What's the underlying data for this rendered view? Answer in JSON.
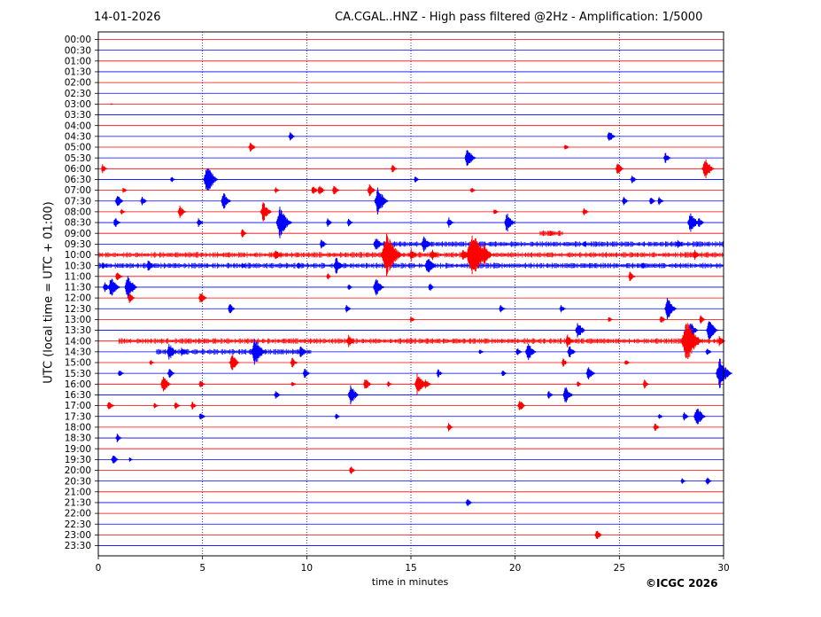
{
  "header": {
    "date": "14-01-2026",
    "title": "CA.CGAL..HNZ - High pass filtered @2Hz - Amplification: 1/5000"
  },
  "footer": {
    "copyright": "©ICGC 2026"
  },
  "chart_data": {
    "type": "line",
    "title": "CA.CGAL..HNZ - High pass filtered @2Hz - Amplification: 1/5000",
    "xlabel": "time in minutes",
    "ylabel": "UTC (local time = UTC + 01:00)",
    "xlim": [
      0,
      30
    ],
    "xticks": [
      0,
      5,
      10,
      15,
      20,
      25,
      30
    ],
    "grid": "vertical dotted lines at x ticks",
    "colors": {
      "even_rows": "#ff0000",
      "odd_rows": "#0000ff",
      "grid": "#00008b",
      "axes": "#000000"
    },
    "rows": [
      "00:00",
      "00:30",
      "01:00",
      "01:30",
      "02:00",
      "02:30",
      "03:00",
      "03:30",
      "04:00",
      "04:30",
      "05:00",
      "05:30",
      "06:00",
      "06:30",
      "07:00",
      "07:30",
      "08:00",
      "08:30",
      "09:00",
      "09:30",
      "10:00",
      "10:30",
      "11:00",
      "11:30",
      "12:00",
      "12:30",
      "13:00",
      "13:30",
      "14:00",
      "14:30",
      "15:00",
      "15:30",
      "16:00",
      "16:30",
      "17:00",
      "17:30",
      "18:00",
      "18:30",
      "19:00",
      "19:30",
      "20:00",
      "20:30",
      "21:00",
      "21:30",
      "22:00",
      "22:30",
      "23:00",
      "23:30"
    ],
    "events": [
      {
        "row": "03:00",
        "x": 0.6,
        "amp": 0.1
      },
      {
        "row": "04:30",
        "x": 9.2,
        "amp": 0.4
      },
      {
        "row": "04:30",
        "x": 24.5,
        "amp": 0.6
      },
      {
        "row": "05:00",
        "x": 7.3,
        "amp": 0.5
      },
      {
        "row": "05:00",
        "x": 22.4,
        "amp": 0.3
      },
      {
        "row": "05:30",
        "x": 17.7,
        "amp": 0.9
      },
      {
        "row": "05:30",
        "x": 27.2,
        "amp": 0.5
      },
      {
        "row": "06:00",
        "x": 0.2,
        "amp": 0.4
      },
      {
        "row": "06:00",
        "x": 14.1,
        "amp": 0.4
      },
      {
        "row": "06:00",
        "x": 24.9,
        "amp": 0.6
      },
      {
        "row": "06:00",
        "x": 29.1,
        "amp": 1.0
      },
      {
        "row": "06:30",
        "x": 3.5,
        "amp": 0.3
      },
      {
        "row": "06:30",
        "x": 5.2,
        "amp": 1.3
      },
      {
        "row": "06:30",
        "x": 15.2,
        "amp": 0.3
      },
      {
        "row": "06:30",
        "x": 25.6,
        "amp": 0.4
      },
      {
        "row": "07:00",
        "x": 1.2,
        "amp": 0.3
      },
      {
        "row": "07:00",
        "x": 8.5,
        "amp": 0.3
      },
      {
        "row": "07:00",
        "x": 10.3,
        "amp": 0.5
      },
      {
        "row": "07:00",
        "x": 10.6,
        "amp": 0.5
      },
      {
        "row": "07:00",
        "x": 11.3,
        "amp": 0.5
      },
      {
        "row": "07:00",
        "x": 13.0,
        "amp": 0.6
      },
      {
        "row": "07:00",
        "x": 17.9,
        "amp": 0.3
      },
      {
        "row": "07:30",
        "x": 0.9,
        "amp": 0.6
      },
      {
        "row": "07:30",
        "x": 2.1,
        "amp": 0.4
      },
      {
        "row": "07:30",
        "x": 6.0,
        "amp": 0.8
      },
      {
        "row": "07:30",
        "x": 13.4,
        "amp": 1.2
      },
      {
        "row": "07:30",
        "x": 25.2,
        "amp": 0.4
      },
      {
        "row": "07:30",
        "x": 26.5,
        "amp": 0.4
      },
      {
        "row": "07:30",
        "x": 26.9,
        "amp": 0.4
      },
      {
        "row": "08:00",
        "x": 1.1,
        "amp": 0.3
      },
      {
        "row": "08:00",
        "x": 3.9,
        "amp": 0.6
      },
      {
        "row": "08:00",
        "x": 7.9,
        "amp": 0.9
      },
      {
        "row": "08:00",
        "x": 19.0,
        "amp": 0.3
      },
      {
        "row": "08:00",
        "x": 23.3,
        "amp": 0.4
      },
      {
        "row": "08:30",
        "x": 0.8,
        "amp": 0.5
      },
      {
        "row": "08:30",
        "x": 4.8,
        "amp": 0.4
      },
      {
        "row": "08:30",
        "x": 8.7,
        "amp": 1.4
      },
      {
        "row": "08:30",
        "x": 11.0,
        "amp": 0.4
      },
      {
        "row": "08:30",
        "x": 12.0,
        "amp": 0.4
      },
      {
        "row": "08:30",
        "x": 16.8,
        "amp": 0.5
      },
      {
        "row": "08:30",
        "x": 19.6,
        "amp": 0.9
      },
      {
        "row": "08:30",
        "x": 28.4,
        "amp": 1.0
      },
      {
        "row": "08:30",
        "x": 28.8,
        "amp": 0.5
      },
      {
        "row": "09:00",
        "x": 6.9,
        "amp": 0.4
      },
      {
        "row": "09:00",
        "x": 21.7,
        "amp": 0.3
      },
      {
        "row": "09:30",
        "x": 10.7,
        "amp": 0.5
      },
      {
        "row": "09:30",
        "x": 13.3,
        "amp": 0.7
      },
      {
        "row": "09:30",
        "x": 15.6,
        "amp": 0.8
      },
      {
        "row": "09:30",
        "x": 23.3,
        "amp": 0.3
      },
      {
        "row": "09:30",
        "x": 27.8,
        "amp": 0.4
      },
      {
        "row": "10:00",
        "x": 8.5,
        "amp": 0.6
      },
      {
        "row": "10:00",
        "x": 13.8,
        "amp": 2.0
      },
      {
        "row": "10:00",
        "x": 15.0,
        "amp": 0.6
      },
      {
        "row": "10:00",
        "x": 16.0,
        "amp": 0.6
      },
      {
        "row": "10:00",
        "x": 17.5,
        "amp": 0.6
      },
      {
        "row": "10:00",
        "x": 17.9,
        "amp": 2.2
      },
      {
        "row": "10:00",
        "x": 18.5,
        "amp": 1.0
      },
      {
        "row": "10:00",
        "x": 28.6,
        "amp": 0.5
      },
      {
        "row": "10:30",
        "x": 0.2,
        "amp": 0.4
      },
      {
        "row": "10:30",
        "x": 2.4,
        "amp": 0.6
      },
      {
        "row": "10:30",
        "x": 6.9,
        "amp": 0.3
      },
      {
        "row": "10:30",
        "x": 9.6,
        "amp": 0.3
      },
      {
        "row": "10:30",
        "x": 11.4,
        "amp": 0.8
      },
      {
        "row": "10:30",
        "x": 15.8,
        "amp": 0.9
      },
      {
        "row": "10:30",
        "x": 26.1,
        "amp": 0.3
      },
      {
        "row": "11:00",
        "x": 0.9,
        "amp": 0.5
      },
      {
        "row": "11:00",
        "x": 11.0,
        "amp": 0.3
      },
      {
        "row": "11:00",
        "x": 25.5,
        "amp": 0.5
      },
      {
        "row": "11:30",
        "x": 0.3,
        "amp": 0.5
      },
      {
        "row": "11:30",
        "x": 0.6,
        "amp": 1.0
      },
      {
        "row": "11:30",
        "x": 1.4,
        "amp": 1.1
      },
      {
        "row": "11:30",
        "x": 12.0,
        "amp": 0.3
      },
      {
        "row": "11:30",
        "x": 13.3,
        "amp": 0.9
      },
      {
        "row": "11:30",
        "x": 15.9,
        "amp": 0.4
      },
      {
        "row": "12:00",
        "x": 1.5,
        "amp": 0.5
      },
      {
        "row": "12:00",
        "x": 4.9,
        "amp": 0.6
      },
      {
        "row": "12:30",
        "x": 6.3,
        "amp": 0.5
      },
      {
        "row": "12:30",
        "x": 11.9,
        "amp": 0.4
      },
      {
        "row": "12:30",
        "x": 19.3,
        "amp": 0.4
      },
      {
        "row": "12:30",
        "x": 22.2,
        "amp": 0.4
      },
      {
        "row": "12:30",
        "x": 27.3,
        "amp": 1.0
      },
      {
        "row": "13:00",
        "x": 15.0,
        "amp": 0.3
      },
      {
        "row": "13:00",
        "x": 24.5,
        "amp": 0.3
      },
      {
        "row": "13:00",
        "x": 27.0,
        "amp": 0.4
      },
      {
        "row": "13:00",
        "x": 28.9,
        "amp": 0.4
      },
      {
        "row": "13:30",
        "x": 23.0,
        "amp": 0.8
      },
      {
        "row": "13:30",
        "x": 28.4,
        "amp": 0.8
      },
      {
        "row": "13:30",
        "x": 29.3,
        "amp": 1.0
      },
      {
        "row": "14:00",
        "x": 12.0,
        "amp": 0.6
      },
      {
        "row": "14:00",
        "x": 22.5,
        "amp": 0.6
      },
      {
        "row": "14:00",
        "x": 28.2,
        "amp": 2.0
      },
      {
        "row": "14:00",
        "x": 29.8,
        "amp": 0.5
      },
      {
        "row": "14:30",
        "x": 3.4,
        "amp": 0.8
      },
      {
        "row": "14:30",
        "x": 4.0,
        "amp": 0.5
      },
      {
        "row": "14:30",
        "x": 7.5,
        "amp": 1.3
      },
      {
        "row": "14:30",
        "x": 9.7,
        "amp": 0.6
      },
      {
        "row": "14:30",
        "x": 18.3,
        "amp": 0.3
      },
      {
        "row": "14:30",
        "x": 20.1,
        "amp": 0.4
      },
      {
        "row": "14:30",
        "x": 20.6,
        "amp": 0.9
      },
      {
        "row": "14:30",
        "x": 22.6,
        "amp": 0.6
      },
      {
        "row": "14:30",
        "x": 29.2,
        "amp": 0.4
      },
      {
        "row": "15:00",
        "x": 2.5,
        "amp": 0.3
      },
      {
        "row": "15:00",
        "x": 6.4,
        "amp": 0.8
      },
      {
        "row": "15:00",
        "x": 9.3,
        "amp": 0.5
      },
      {
        "row": "15:00",
        "x": 22.3,
        "amp": 0.4
      },
      {
        "row": "15:00",
        "x": 25.3,
        "amp": 0.3
      },
      {
        "row": "15:30",
        "x": 1.0,
        "amp": 0.4
      },
      {
        "row": "15:30",
        "x": 3.4,
        "amp": 0.5
      },
      {
        "row": "15:30",
        "x": 9.9,
        "amp": 0.5
      },
      {
        "row": "15:30",
        "x": 16.3,
        "amp": 0.4
      },
      {
        "row": "15:30",
        "x": 19.4,
        "amp": 0.3
      },
      {
        "row": "15:30",
        "x": 23.5,
        "amp": 0.7
      },
      {
        "row": "15:30",
        "x": 29.8,
        "amp": 1.4
      },
      {
        "row": "16:00",
        "x": 3.1,
        "amp": 0.8
      },
      {
        "row": "16:00",
        "x": 4.9,
        "amp": 0.4
      },
      {
        "row": "16:00",
        "x": 9.3,
        "amp": 0.3
      },
      {
        "row": "16:00",
        "x": 12.8,
        "amp": 0.6
      },
      {
        "row": "16:00",
        "x": 13.9,
        "amp": 0.3
      },
      {
        "row": "16:00",
        "x": 15.3,
        "amp": 1.0
      },
      {
        "row": "16:00",
        "x": 15.7,
        "amp": 0.5
      },
      {
        "row": "16:00",
        "x": 23.0,
        "amp": 0.3
      },
      {
        "row": "16:00",
        "x": 26.2,
        "amp": 0.4
      },
      {
        "row": "16:30",
        "x": 8.5,
        "amp": 0.4
      },
      {
        "row": "16:30",
        "x": 12.1,
        "amp": 0.9
      },
      {
        "row": "16:30",
        "x": 21.6,
        "amp": 0.4
      },
      {
        "row": "16:30",
        "x": 22.4,
        "amp": 0.8
      },
      {
        "row": "17:00",
        "x": 0.5,
        "amp": 0.5
      },
      {
        "row": "17:00",
        "x": 2.7,
        "amp": 0.3
      },
      {
        "row": "17:00",
        "x": 3.7,
        "amp": 0.4
      },
      {
        "row": "17:00",
        "x": 4.5,
        "amp": 0.4
      },
      {
        "row": "17:00",
        "x": 20.2,
        "amp": 0.6
      },
      {
        "row": "17:30",
        "x": 4.9,
        "amp": 0.4
      },
      {
        "row": "17:30",
        "x": 11.4,
        "amp": 0.3
      },
      {
        "row": "17:30",
        "x": 26.9,
        "amp": 0.3
      },
      {
        "row": "17:30",
        "x": 28.1,
        "amp": 0.4
      },
      {
        "row": "17:30",
        "x": 28.7,
        "amp": 1.0
      },
      {
        "row": "18:00",
        "x": 16.8,
        "amp": 0.4
      },
      {
        "row": "18:00",
        "x": 26.7,
        "amp": 0.4
      },
      {
        "row": "18:30",
        "x": 0.9,
        "amp": 0.4
      },
      {
        "row": "19:30",
        "x": 0.7,
        "amp": 0.5
      },
      {
        "row": "19:30",
        "x": 1.5,
        "amp": 0.2
      },
      {
        "row": "20:00",
        "x": 12.1,
        "amp": 0.4
      },
      {
        "row": "20:30",
        "x": 28.0,
        "amp": 0.3
      },
      {
        "row": "20:30",
        "x": 29.2,
        "amp": 0.4
      },
      {
        "row": "21:30",
        "x": 17.7,
        "amp": 0.4
      },
      {
        "row": "23:00",
        "x": 23.9,
        "amp": 0.5
      }
    ],
    "noise_bursts": [
      {
        "row": "09:00",
        "x0": 21.2,
        "x1": 22.3
      },
      {
        "row": "09:30",
        "x0": 13.5,
        "x1": 30.0
      },
      {
        "row": "10:00",
        "x0": 0.0,
        "x1": 30.0
      },
      {
        "row": "10:30",
        "x0": 0.0,
        "x1": 30.0
      },
      {
        "row": "14:00",
        "x0": 1.0,
        "x1": 30.0
      },
      {
        "row": "14:30",
        "x0": 2.8,
        "x1": 10.2
      }
    ]
  }
}
